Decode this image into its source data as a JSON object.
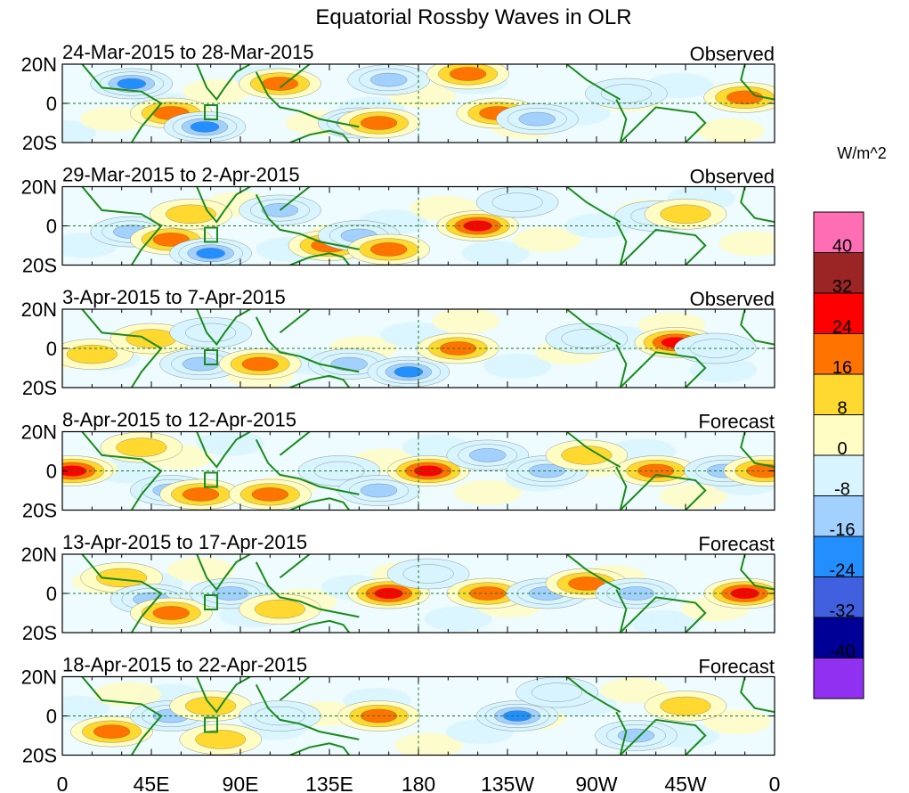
{
  "chart_data": {
    "type": "heatmap",
    "title": "Equatorial Rossby Waves in OLR",
    "units": "W/m^2",
    "x_ticks": [
      "0",
      "45E",
      "90E",
      "135E",
      "180",
      "135W",
      "90W",
      "45W",
      "0"
    ],
    "y_ticks": [
      "20N",
      "0",
      "20S"
    ],
    "xlim_deg_east": [
      0,
      360
    ],
    "ylim_deg": [
      -20,
      20
    ],
    "colorbar": {
      "levels": [
        "40",
        "32",
        "24",
        "16",
        "8",
        "0",
        "-8",
        "-16",
        "-24",
        "-32",
        "-40"
      ],
      "colors": [
        "#ff6eb4",
        "#9b2424",
        "#ff0000",
        "#ff7300",
        "#ffd830",
        "#fffcc4",
        "#d8f5ff",
        "#a2d0ff",
        "#238fff",
        "#4060e0",
        "#000096",
        "#9030f0"
      ]
    },
    "panels": [
      {
        "period": "24-Mar-2015 to 28-Mar-2015",
        "status": "Observed",
        "anomalies": [
          [
            35,
            10,
            -24
          ],
          [
            55,
            -5,
            16
          ],
          [
            72,
            -12,
            -24
          ],
          [
            110,
            10,
            16
          ],
          [
            150,
            -10,
            -28
          ],
          [
            160,
            -10,
            16
          ],
          [
            165,
            12,
            -16
          ],
          [
            205,
            15,
            20
          ],
          [
            220,
            -5,
            18
          ],
          [
            240,
            -8,
            -16
          ],
          [
            285,
            5,
            -10
          ],
          [
            345,
            3,
            16
          ]
        ]
      },
      {
        "period": "29-Mar-2015 to 2-Apr-2015",
        "status": "Observed",
        "anomalies": [
          [
            35,
            -3,
            -16
          ],
          [
            55,
            -7,
            16
          ],
          [
            75,
            -14,
            -24
          ],
          [
            65,
            6,
            14
          ],
          [
            110,
            8,
            -16
          ],
          [
            135,
            -10,
            16
          ],
          [
            150,
            -5,
            -18
          ],
          [
            165,
            -12,
            18
          ],
          [
            210,
            0,
            28
          ],
          [
            230,
            12,
            -10
          ],
          [
            300,
            5,
            -10
          ],
          [
            315,
            6,
            12
          ]
        ]
      },
      {
        "period": "3-Apr-2015 to 7-Apr-2015",
        "status": "Observed",
        "anomalies": [
          [
            15,
            -3,
            14
          ],
          [
            45,
            5,
            10
          ],
          [
            70,
            -8,
            -22
          ],
          [
            75,
            8,
            -12
          ],
          [
            100,
            -8,
            16
          ],
          [
            145,
            -8,
            -16
          ],
          [
            175,
            -12,
            -24
          ],
          [
            200,
            0,
            22
          ],
          [
            265,
            5,
            -10
          ],
          [
            310,
            3,
            24
          ],
          [
            330,
            0,
            -8
          ]
        ]
      },
      {
        "period": "8-Apr-2015 to 12-Apr-2015",
        "status": "Forecast",
        "anomalies": [
          [
            5,
            0,
            24
          ],
          [
            40,
            12,
            12
          ],
          [
            55,
            -10,
            -20
          ],
          [
            70,
            -12,
            16
          ],
          [
            105,
            -12,
            18
          ],
          [
            140,
            0,
            -12
          ],
          [
            160,
            -10,
            -20
          ],
          [
            185,
            0,
            24
          ],
          [
            215,
            8,
            -20
          ],
          [
            245,
            0,
            -16
          ],
          [
            265,
            8,
            14
          ],
          [
            300,
            0,
            18
          ],
          [
            335,
            0,
            -16
          ],
          [
            355,
            0,
            18
          ]
        ]
      },
      {
        "period": "13-Apr-2015 to 17-Apr-2015",
        "status": "Forecast",
        "anomalies": [
          [
            30,
            8,
            14
          ],
          [
            45,
            -3,
            -16
          ],
          [
            55,
            -10,
            16
          ],
          [
            85,
            0,
            -20
          ],
          [
            110,
            -8,
            14
          ],
          [
            165,
            0,
            30
          ],
          [
            185,
            10,
            -10
          ],
          [
            215,
            0,
            18
          ],
          [
            245,
            0,
            -22
          ],
          [
            265,
            5,
            18
          ],
          [
            290,
            0,
            -20
          ],
          [
            345,
            0,
            24
          ]
        ]
      },
      {
        "period": "18-Apr-2015 to 22-Apr-2015",
        "status": "Forecast",
        "anomalies": [
          [
            25,
            -8,
            16
          ],
          [
            55,
            0,
            -16
          ],
          [
            75,
            5,
            14
          ],
          [
            80,
            -12,
            14
          ],
          [
            110,
            0,
            -14
          ],
          [
            160,
            0,
            20
          ],
          [
            230,
            0,
            -24
          ],
          [
            250,
            12,
            -14
          ],
          [
            290,
            -10,
            -16
          ],
          [
            315,
            5,
            14
          ]
        ]
      }
    ]
  }
}
